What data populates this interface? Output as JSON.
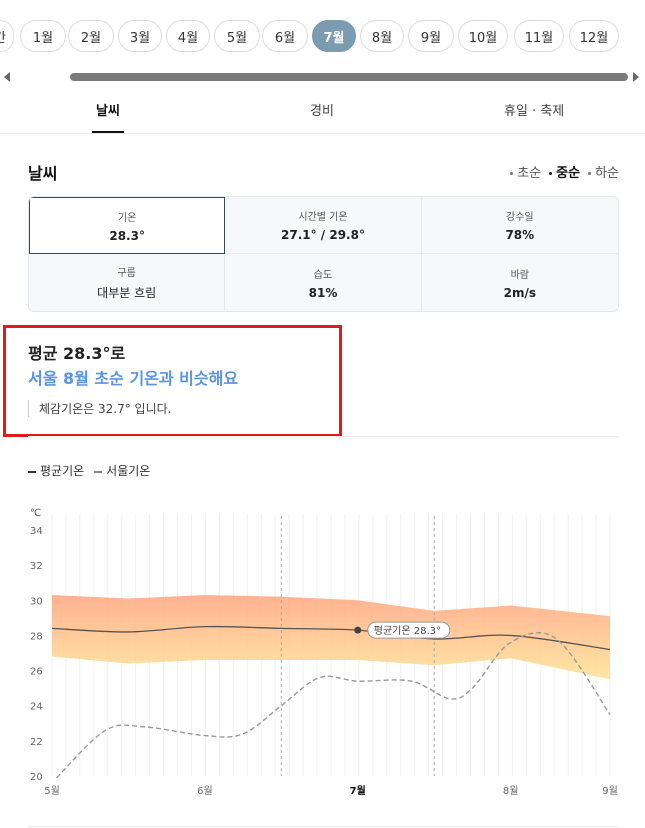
{
  "months": {
    "items": [
      {
        "label": "간",
        "active": false
      },
      {
        "label": "1월",
        "active": false
      },
      {
        "label": "2월",
        "active": false
      },
      {
        "label": "3월",
        "active": false
      },
      {
        "label": "4월",
        "active": false
      },
      {
        "label": "5월",
        "active": false
      },
      {
        "label": "6월",
        "active": false
      },
      {
        "label": "7월",
        "active": true
      },
      {
        "label": "8월",
        "active": false
      },
      {
        "label": "9월",
        "active": false
      },
      {
        "label": "10월",
        "active": false
      },
      {
        "label": "11월",
        "active": false
      },
      {
        "label": "12월",
        "active": false
      }
    ]
  },
  "tabs": [
    {
      "label": "날씨",
      "active": true
    },
    {
      "label": "경비",
      "active": false
    },
    {
      "label": "휴일 · 축제",
      "active": false
    }
  ],
  "section": {
    "title": "날씨",
    "period": [
      {
        "label": "초순",
        "selected": false
      },
      {
        "label": "중순",
        "selected": true
      },
      {
        "label": "하순",
        "selected": false
      }
    ]
  },
  "stats": [
    {
      "label": "기온",
      "value": "28.3°"
    },
    {
      "label": "시간별 기온",
      "value": "27.1° / 29.8°"
    },
    {
      "label": "강수일",
      "value": "78%"
    },
    {
      "label": "구름",
      "value": "대부분 흐림"
    },
    {
      "label": "습도",
      "value": "81%"
    },
    {
      "label": "바람",
      "value": "2m/s"
    }
  ],
  "highlight": {
    "line1": "평균 28.3°로",
    "line2": "서울 8월 초순 기온과 비슷해요",
    "note": "체감기온은 32.7° 입니다."
  },
  "legend": {
    "series1": "평균기온",
    "series2": "서울기온"
  },
  "colors": {
    "accent": "#7a9bb0",
    "highlight_text": "#5b93e6",
    "highlight_box": "#e01919",
    "band_top": "#ffa985",
    "band_bottom": "#ffe49a"
  },
  "chart_data": {
    "type": "line",
    "unit": "℃",
    "ylim": [
      20,
      34
    ],
    "yticks": [
      20,
      22,
      24,
      26,
      28,
      30,
      32,
      34
    ],
    "xticks": [
      {
        "label": "5월",
        "x": 0,
        "bold": false
      },
      {
        "label": "6월",
        "x": 1,
        "bold": false
      },
      {
        "label": "7월",
        "x": 2,
        "bold": true
      },
      {
        "label": "8월",
        "x": 3,
        "bold": false
      },
      {
        "label": "9월",
        "x": 3.65,
        "bold": false
      }
    ],
    "xlim": [
      0,
      3.65
    ],
    "vlines": [
      1.5,
      2.5
    ],
    "annotation": {
      "text": "평균기온 28.3°",
      "x": 2,
      "y": 28.3
    },
    "band": {
      "x": [
        0,
        0.5,
        1,
        1.5,
        2,
        2.5,
        3,
        3.65
      ],
      "upper": [
        30.3,
        30.1,
        30.3,
        30.2,
        30.0,
        29.4,
        29.7,
        29.1
      ],
      "lower": [
        26.8,
        26.4,
        26.6,
        26.6,
        26.6,
        26.3,
        26.7,
        25.5
      ]
    },
    "series": [
      {
        "name": "평균기온",
        "style": "solid",
        "x": [
          0,
          0.5,
          1,
          1.5,
          2,
          2.5,
          3,
          3.65
        ],
        "values": [
          28.4,
          28.2,
          28.5,
          28.4,
          28.3,
          27.8,
          28.0,
          27.2
        ]
      },
      {
        "name": "서울기온",
        "style": "dashed",
        "x": [
          0.03,
          0.35,
          0.6,
          1.0,
          1.25,
          1.5,
          1.75,
          2.0,
          2.35,
          2.6,
          2.75,
          3.0,
          3.3,
          3.65
        ],
        "values": [
          19.9,
          22.6,
          22.8,
          22.3,
          22.4,
          24.0,
          25.6,
          25.4,
          25.4,
          24.4,
          25.0,
          27.6,
          27.8,
          23.5
        ]
      }
    ]
  }
}
